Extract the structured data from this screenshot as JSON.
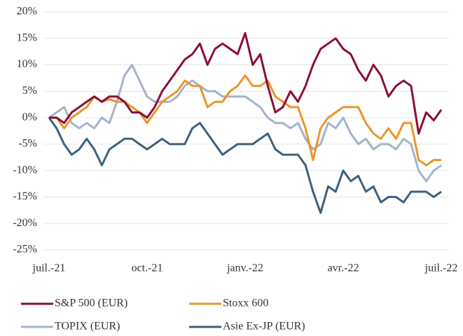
{
  "chart_data": {
    "type": "line",
    "categories": [
      "juil.-21",
      null,
      null,
      null,
      null,
      null,
      null,
      null,
      null,
      null,
      null,
      null,
      null,
      "oct.-21",
      null,
      null,
      null,
      null,
      null,
      null,
      null,
      null,
      null,
      null,
      null,
      null,
      "janv.-22",
      null,
      null,
      null,
      null,
      null,
      null,
      null,
      null,
      null,
      null,
      null,
      null,
      "avr.-22",
      null,
      null,
      null,
      null,
      null,
      null,
      null,
      null,
      null,
      null,
      null,
      null,
      "juil.-22"
    ],
    "series": [
      {
        "name": "S&P 500 (EUR)",
        "color": "#8b0d3a",
        "values": [
          0,
          0,
          -1,
          1,
          2,
          3,
          4,
          3,
          4,
          4,
          3,
          1,
          1,
          0,
          2,
          5,
          7,
          9,
          11,
          12,
          14,
          10,
          13,
          14,
          13,
          12,
          16,
          10,
          12,
          6,
          1,
          2,
          5,
          3,
          6,
          10,
          13,
          14,
          15,
          13,
          12,
          9,
          7,
          10,
          8,
          4,
          6,
          7,
          6,
          -3,
          1,
          -0.5,
          1.5
        ]
      },
      {
        "name": "Stoxx 600",
        "color": "#e8962a",
        "values": [
          0,
          0,
          -2,
          0,
          1,
          2,
          4,
          3,
          3.5,
          3,
          3,
          2,
          1,
          -1,
          1,
          3,
          4,
          5,
          7,
          6,
          6,
          2,
          3,
          3,
          5,
          6,
          8,
          6,
          6,
          7,
          4,
          3,
          2,
          2,
          -2,
          -8,
          -2,
          0,
          1,
          2,
          2,
          2,
          -1,
          -3,
          -4,
          -2,
          -4,
          -1,
          -1,
          -8,
          -9,
          -8,
          -8
        ]
      },
      {
        "name": "TOPIX (EUR)",
        "color": "#a3b3cc",
        "values": [
          0,
          1,
          2,
          -1,
          -2,
          -1,
          -2,
          0,
          -1,
          3,
          8,
          10,
          7,
          4,
          3,
          3,
          3,
          4,
          6,
          7,
          6,
          5,
          5,
          4,
          4,
          4,
          4,
          3,
          2,
          0,
          -1,
          -1,
          -2,
          -1,
          -4,
          -6,
          -5,
          -1,
          -2,
          0,
          -3,
          -5,
          -4,
          -6,
          -5,
          -5,
          -6,
          -4,
          -5,
          -10,
          -12,
          -10,
          -9
        ]
      },
      {
        "name": "Asie Ex-JP (EUR)",
        "color": "#3e607f",
        "values": [
          0,
          -2,
          -5,
          -7,
          -6,
          -4,
          -6,
          -9,
          -6,
          -5,
          -4,
          -4,
          -5,
          -6,
          -5,
          -4,
          -5,
          -5,
          -5,
          -2,
          -1,
          -3,
          -5,
          -7,
          -6,
          -5,
          -5,
          -5,
          -4,
          -3,
          -6,
          -7,
          -7,
          -7,
          -9,
          -14,
          -18,
          -13,
          -14,
          -10,
          -12,
          -11,
          -14,
          -13,
          -16,
          -15,
          -15,
          -16,
          -14,
          -14,
          -14,
          -15,
          -14
        ]
      }
    ],
    "ylim": [
      -25,
      20
    ],
    "yticks": [
      {
        "value": -25,
        "label": "-25%"
      },
      {
        "value": -20,
        "label": "-20%"
      },
      {
        "value": -15,
        "label": "-15%"
      },
      {
        "value": -10,
        "label": "-10%"
      },
      {
        "value": -5,
        "label": "-5%"
      },
      {
        "value": 0,
        "label": "0%"
      },
      {
        "value": 5,
        "label": "5%"
      },
      {
        "value": 10,
        "label": "10%"
      },
      {
        "value": 15,
        "label": "15%"
      },
      {
        "value": 20,
        "label": "20%"
      }
    ],
    "grid": true
  }
}
